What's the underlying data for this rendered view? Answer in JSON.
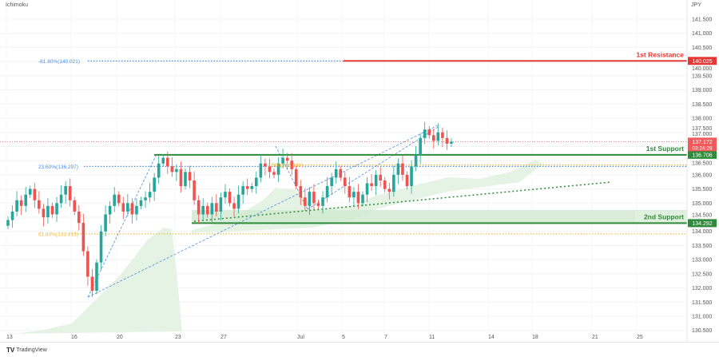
{
  "header": {
    "indicator": "Ichimoku",
    "currency": "JPY"
  },
  "footer": {
    "brand": "TradingView"
  },
  "colors": {
    "up": "#26a69a",
    "down": "#ef5350",
    "support": "#2e8b3a",
    "resistance": "#e53935",
    "fib_blue": "#4a90e2",
    "fib_orange": "#f5b731",
    "cloud": "#d9efd9"
  },
  "chart_data": {
    "type": "candlestick",
    "ylim": [
      130.5,
      141.8
    ],
    "y_ticks": [
      "141.500",
      "141.000",
      "140.500",
      "140.000",
      "139.500",
      "139.000",
      "138.500",
      "138.000",
      "137.500",
      "137.000",
      "136.500",
      "136.000",
      "135.500",
      "135.000",
      "134.500",
      "134.000",
      "133.500",
      "133.000",
      "132.500",
      "132.000",
      "131.500",
      "131.000",
      "130.500"
    ],
    "x_ticks": [
      "13",
      "16",
      "20",
      "23",
      "27",
      "Jul",
      "5",
      "7",
      "11",
      "14",
      "18",
      "21",
      "25"
    ],
    "closes": [
      134.4,
      134.7,
      135.1,
      134.9,
      135.3,
      135.5,
      135.1,
      134.8,
      134.5,
      134.9,
      134.6,
      135.0,
      135.3,
      135.6,
      135.1,
      134.7,
      134.3,
      133.3,
      132.4,
      131.9,
      132.9,
      134.0,
      134.6,
      134.9,
      135.3,
      135.0,
      134.7,
      135.0,
      134.6,
      134.9,
      135.1,
      135.2,
      135.4,
      135.9,
      136.4,
      136.6,
      136.3,
      136.1,
      136.2,
      135.6,
      136.1,
      135.8,
      135.1,
      134.6,
      134.9,
      134.6,
      135.0,
      134.7,
      135.2,
      135.4,
      135.0,
      134.8,
      135.3,
      135.6,
      135.5,
      135.6,
      135.9,
      136.4,
      136.3,
      136.1,
      136.0,
      136.4,
      136.6,
      136.5,
      136.2,
      135.6,
      135.2,
      134.9,
      135.4,
      135.0,
      134.9,
      135.2,
      135.6,
      135.9,
      136.2,
      135.9,
      135.6,
      135.2,
      135.4,
      135.0,
      135.3,
      135.7,
      135.6,
      136.0,
      135.8,
      135.5,
      135.4,
      136.0,
      136.4,
      136.0,
      135.6,
      136.3,
      136.7,
      137.3,
      137.6,
      137.4,
      137.2,
      137.5,
      137.3,
      137.1,
      137.17
    ],
    "levels": [
      {
        "name": "1st Resistance",
        "value": 140.025,
        "label": "140.025",
        "kind": "resistance"
      },
      {
        "name": "1st Support",
        "value": 136.706,
        "label": "136.706",
        "kind": "support"
      },
      {
        "name": "2nd Support",
        "value": 134.292,
        "label": "134.292",
        "kind": "support"
      }
    ],
    "fib_labels": [
      {
        "text": "-61.80%(140.021)",
        "value": 140.021,
        "color": "blue"
      },
      {
        "text": "23.60%(136.297)",
        "value": 136.297,
        "color": "blue"
      },
      {
        "text": "61.80%(133.913)",
        "value": 133.913,
        "color": "orange"
      },
      {
        "text": "0.500(136.349)",
        "value": 136.349,
        "color": "orange"
      }
    ],
    "current_price": {
      "value": "137.172",
      "countdown": "03:24:28"
    }
  }
}
